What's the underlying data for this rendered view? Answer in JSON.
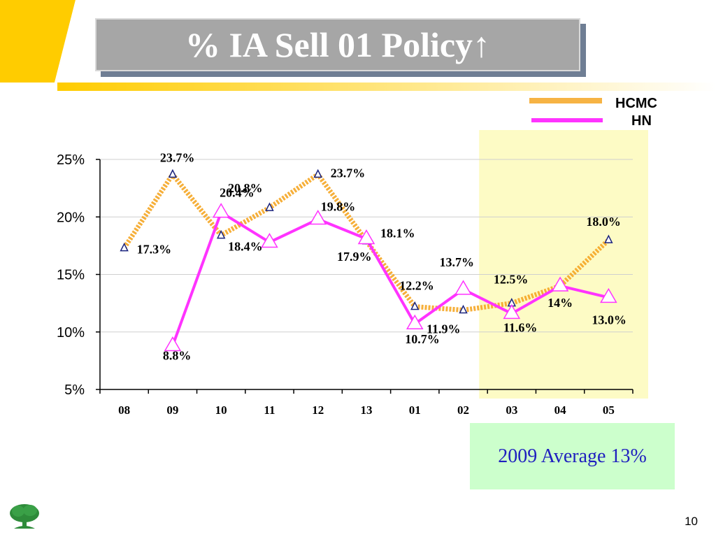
{
  "title": "% IA Sell 01 Policy↑",
  "page_number": "10",
  "average_note": "2009 Average 13%",
  "colors": {
    "hcmc": "#f5a623",
    "hn": "#ff33ff",
    "highlight": "#fdfbc5",
    "avg_bg": "#ccffcc",
    "banner": "#ffcc00"
  },
  "chart_data": {
    "type": "line",
    "categories": [
      "08",
      "09",
      "10",
      "11",
      "12",
      "13",
      "01",
      "02",
      "03",
      "04",
      "05"
    ],
    "y_tick_labels": [
      "25%",
      "20%",
      "15%",
      "10%",
      "5%"
    ],
    "y_ticks": [
      25,
      20,
      15,
      10,
      5
    ],
    "ylim": [
      5,
      25
    ],
    "highlight_categories": [
      "03",
      "04",
      "05"
    ],
    "legend_position": "top-right",
    "series": [
      {
        "name": "HCMC",
        "values": [
          17.3,
          23.7,
          18.4,
          20.8,
          23.7,
          17.9,
          12.2,
          11.9,
          12.5,
          14.0,
          18.0
        ],
        "labels": [
          "17.3%",
          "23.7%",
          "18.4%",
          "20.8%",
          "23.7%",
          "17.9%",
          "12.2%",
          "11.9%",
          "12.5%",
          "14%",
          "18.0%"
        ]
      },
      {
        "name": "HN",
        "values": [
          null,
          8.8,
          20.4,
          17.8,
          19.8,
          18.1,
          10.7,
          13.7,
          11.6,
          14.0,
          13.0
        ],
        "labels": [
          "",
          "8.8%",
          "20.4%",
          "",
          "19.8%",
          "18.1%",
          "10.7%",
          "13.7%",
          "11.6%",
          "",
          "13.0%"
        ]
      }
    ]
  }
}
